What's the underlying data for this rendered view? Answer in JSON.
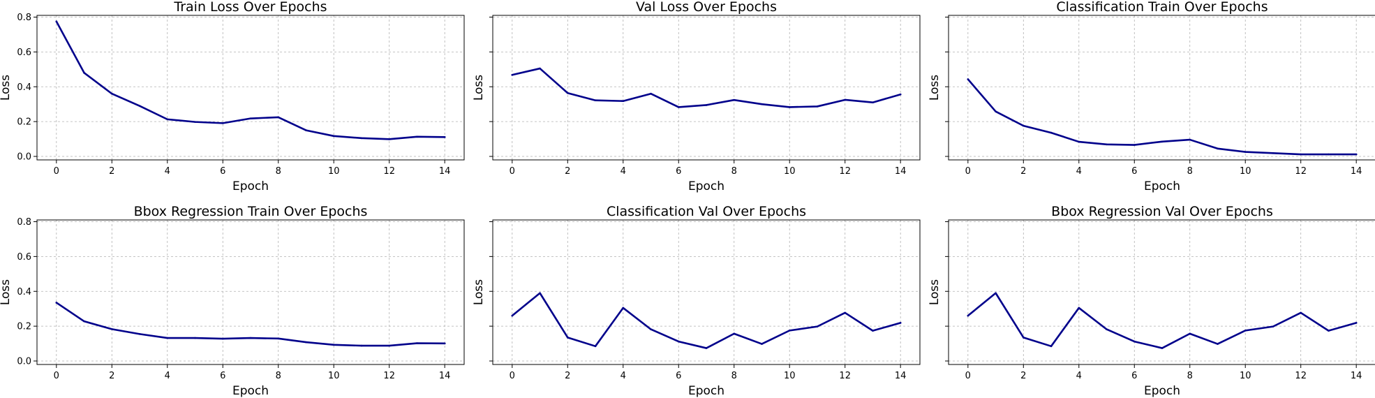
{
  "figure": {
    "background": "#ffffff",
    "line_color": "#00008b",
    "grid_color": "#b0b0b0"
  },
  "chart_data": [
    {
      "type": "line",
      "title": "Train Loss Over Epochs",
      "xlabel": "Epoch",
      "ylabel": "Loss",
      "x": [
        0,
        1,
        2,
        3,
        4,
        5,
        6,
        7,
        8,
        9,
        10,
        11,
        12,
        13,
        14
      ],
      "values": [
        0.775,
        0.48,
        0.36,
        0.29,
        0.213,
        0.198,
        0.191,
        0.218,
        0.225,
        0.15,
        0.117,
        0.105,
        0.099,
        0.113,
        0.111
      ],
      "xlim": [
        -0.7,
        14.7
      ],
      "ylim": [
        -0.02,
        0.81
      ],
      "xticks": [
        0,
        2,
        4,
        6,
        8,
        10,
        12,
        14
      ],
      "yticks": [
        0.0,
        0.2,
        0.4,
        0.6,
        0.8
      ],
      "ytick_labels": [
        "0.0",
        "0.2",
        "0.4",
        "0.6",
        "0.8"
      ],
      "grid": true,
      "legend": "none"
    },
    {
      "type": "line",
      "title": "Val Loss Over Epochs",
      "xlabel": "Epoch",
      "ylabel": "Loss",
      "x": [
        0,
        1,
        2,
        3,
        4,
        5,
        6,
        7,
        8,
        9,
        10,
        11,
        12,
        13,
        14
      ],
      "values": [
        0.468,
        0.505,
        0.364,
        0.322,
        0.318,
        0.36,
        0.283,
        0.295,
        0.324,
        0.3,
        0.283,
        0.287,
        0.325,
        0.31,
        0.356
      ],
      "xlim": [
        -0.7,
        14.7
      ],
      "ylim": [
        -0.02,
        0.81
      ],
      "xticks": [
        0,
        2,
        4,
        6,
        8,
        10,
        12,
        14
      ],
      "yticks": [
        0.0,
        0.2,
        0.4,
        0.6,
        0.8
      ],
      "ytick_labels": [],
      "grid": true,
      "legend": "none"
    },
    {
      "type": "line",
      "title": "Classification Train Over Epochs",
      "xlabel": "Epoch",
      "ylabel": "Loss",
      "x": [
        0,
        1,
        2,
        3,
        4,
        5,
        6,
        7,
        8,
        9,
        10,
        11,
        12,
        13,
        14
      ],
      "values": [
        0.443,
        0.258,
        0.176,
        0.136,
        0.084,
        0.069,
        0.066,
        0.085,
        0.096,
        0.045,
        0.026,
        0.019,
        0.012,
        0.012,
        0.012
      ],
      "xlim": [
        -0.7,
        14.7
      ],
      "ylim": [
        -0.02,
        0.81
      ],
      "xticks": [
        0,
        2,
        4,
        6,
        8,
        10,
        12,
        14
      ],
      "yticks": [
        0.0,
        0.2,
        0.4,
        0.6,
        0.8
      ],
      "ytick_labels": [],
      "grid": true,
      "legend": "none"
    },
    {
      "type": "line",
      "title": "Bbox Regression Train Over Epochs",
      "xlabel": "Epoch",
      "ylabel": "Loss",
      "x": [
        0,
        1,
        2,
        3,
        4,
        5,
        6,
        7,
        8,
        9,
        10,
        11,
        12,
        13,
        14
      ],
      "values": [
        0.335,
        0.228,
        0.183,
        0.155,
        0.132,
        0.132,
        0.128,
        0.132,
        0.129,
        0.108,
        0.093,
        0.088,
        0.088,
        0.102,
        0.101
      ],
      "xlim": [
        -0.7,
        14.7
      ],
      "ylim": [
        -0.02,
        0.81
      ],
      "xticks": [
        0,
        2,
        4,
        6,
        8,
        10,
        12,
        14
      ],
      "yticks": [
        0.0,
        0.2,
        0.4,
        0.6,
        0.8
      ],
      "ytick_labels": [
        "0.0",
        "0.2",
        "0.4",
        "0.6",
        "0.8"
      ],
      "grid": true,
      "legend": "none"
    },
    {
      "type": "line",
      "title": "Classification Val Over Epochs",
      "xlabel": "Epoch",
      "ylabel": "Loss",
      "x": [
        0,
        1,
        2,
        3,
        4,
        5,
        6,
        7,
        8,
        9,
        10,
        11,
        12,
        13,
        14
      ],
      "values": [
        0.26,
        0.39,
        0.135,
        0.085,
        0.305,
        0.182,
        0.112,
        0.074,
        0.157,
        0.098,
        0.175,
        0.198,
        0.277,
        0.174,
        0.219
      ],
      "xlim": [
        -0.7,
        14.7
      ],
      "ylim": [
        -0.02,
        0.81
      ],
      "xticks": [
        0,
        2,
        4,
        6,
        8,
        10,
        12,
        14
      ],
      "yticks": [
        0.0,
        0.2,
        0.4,
        0.6,
        0.8
      ],
      "ytick_labels": [],
      "grid": true,
      "legend": "none"
    },
    {
      "type": "line",
      "title": "Bbox Regression Val Over Epochs",
      "xlabel": "Epoch",
      "ylabel": "Loss",
      "x": [
        0,
        1,
        2,
        3,
        4,
        5,
        6,
        7,
        8,
        9,
        10,
        11,
        12,
        13,
        14
      ],
      "values": [
        0.26,
        0.39,
        0.135,
        0.085,
        0.305,
        0.182,
        0.112,
        0.074,
        0.157,
        0.098,
        0.175,
        0.198,
        0.277,
        0.174,
        0.219
      ],
      "xlim": [
        -0.7,
        14.7
      ],
      "ylim": [
        -0.02,
        0.81
      ],
      "xticks": [
        0,
        2,
        4,
        6,
        8,
        10,
        12,
        14
      ],
      "yticks": [
        0.0,
        0.2,
        0.4,
        0.6,
        0.8
      ],
      "ytick_labels": [],
      "grid": true,
      "legend": "none"
    }
  ]
}
